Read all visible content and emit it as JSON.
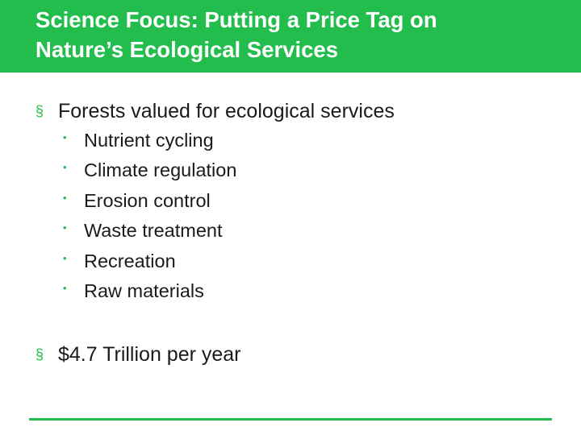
{
  "colors": {
    "accent": "#22bd4c",
    "text": "#1a1a1a",
    "background": "#ffffff"
  },
  "slide": {
    "title_lines": [
      "Science Focus: Putting a Price Tag on",
      "Nature’s Ecological Services"
    ],
    "bullets": [
      {
        "marker": "§",
        "text": "Forests valued for ecological services",
        "subitems": [
          "Nutrient cycling",
          "Climate regulation",
          "Erosion control",
          "Waste treatment",
          "Recreation",
          "Raw materials"
        ]
      },
      {
        "marker": "§",
        "text": "$4.7 Trillion per year"
      }
    ],
    "sub_marker": "•"
  }
}
